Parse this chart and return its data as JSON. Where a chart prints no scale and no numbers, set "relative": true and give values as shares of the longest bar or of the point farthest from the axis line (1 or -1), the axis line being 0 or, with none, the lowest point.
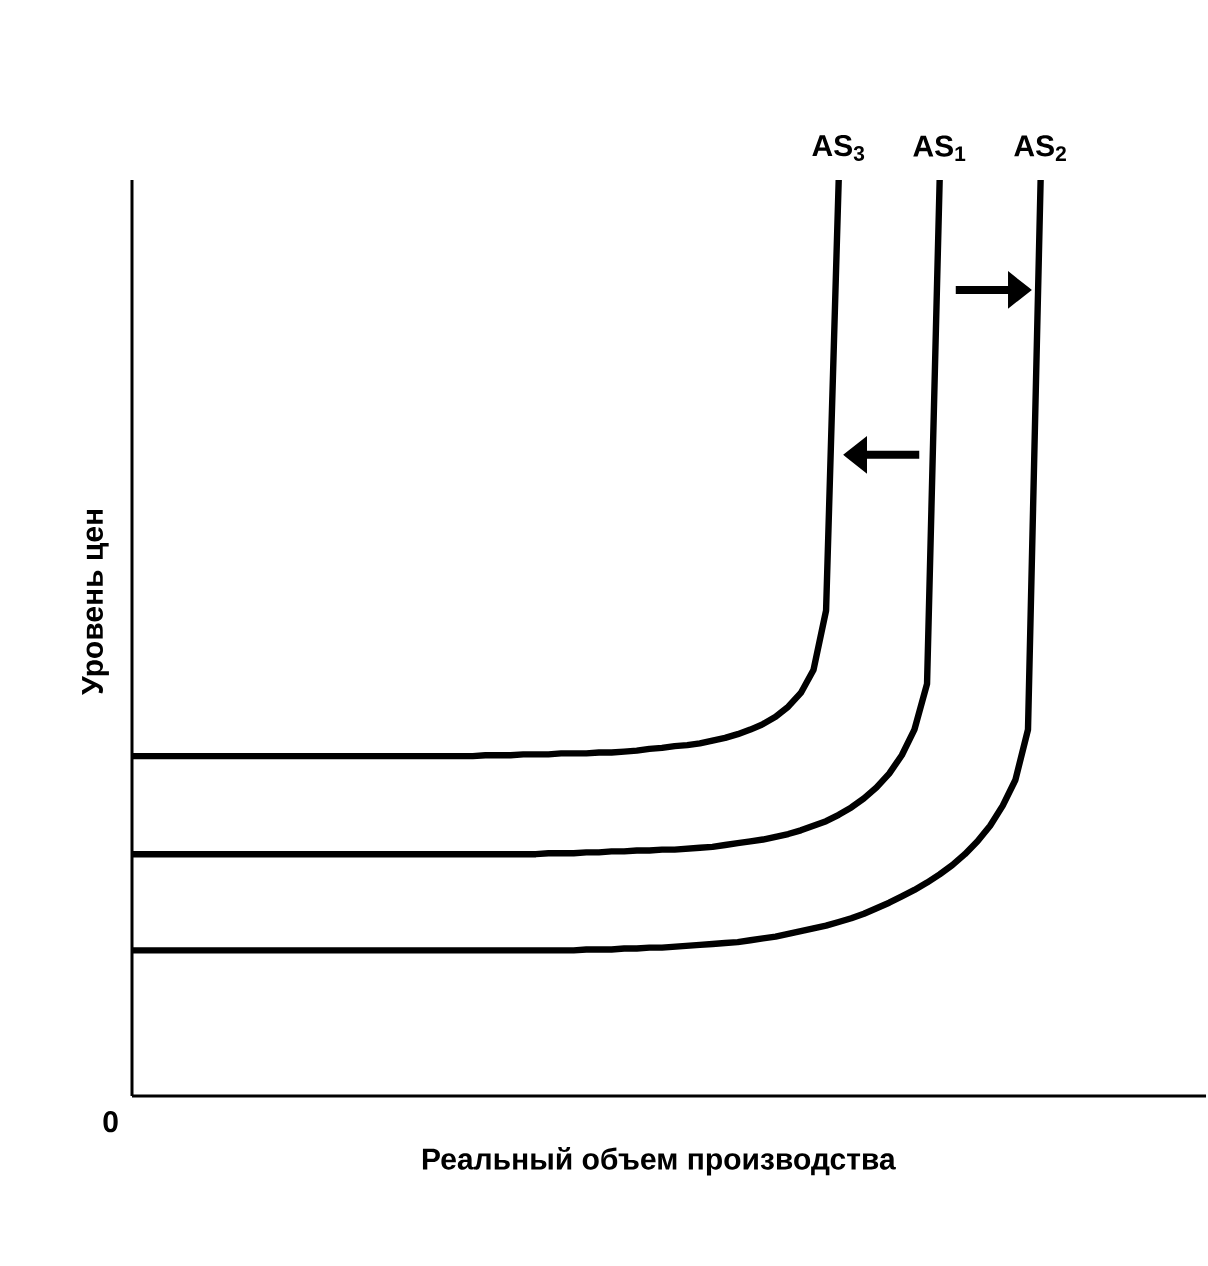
{
  "chart_data": {
    "type": "line",
    "relative": true,
    "xlabel": "Реальный объем производства",
    "ylabel": "Уровень цен",
    "annotations": [
      "0"
    ],
    "legend": false,
    "line_style": "solid",
    "marker": "none",
    "categories": [
      null,
      null,
      null,
      null,
      null,
      null,
      null,
      null,
      null,
      null,
      null,
      null,
      null,
      null,
      null,
      null,
      null,
      null,
      null,
      null,
      null,
      null,
      null,
      null,
      null,
      null,
      null,
      null,
      null,
      null,
      null,
      null,
      null,
      null,
      null,
      null,
      null,
      null,
      null,
      null,
      null,
      null,
      null,
      null,
      null,
      null,
      null,
      null,
      null,
      null,
      null,
      null,
      null,
      null,
      null,
      null,
      null,
      null,
      null,
      null,
      null,
      null,
      null,
      null,
      null,
      null,
      null,
      null,
      null,
      null,
      null,
      null,
      null
    ],
    "series": [
      {
        "name": "AS$_{3}$",
        "color": "#000000",
        "values": [
          0.371,
          0.371,
          0.371,
          0.371,
          0.371,
          0.371,
          0.371,
          0.371,
          0.371,
          0.371,
          0.371,
          0.371,
          0.371,
          0.371,
          0.371,
          0.371,
          0.371,
          0.371,
          0.371,
          0.371,
          0.371,
          0.371,
          0.371,
          0.371,
          0.371,
          0.371,
          0.371,
          0.371,
          0.372,
          0.372,
          0.372,
          0.373,
          0.373,
          0.373,
          0.374,
          0.374,
          0.374,
          0.375,
          0.375,
          0.376,
          0.377,
          0.379,
          0.38,
          0.382,
          0.383,
          0.385,
          0.388,
          0.391,
          0.395,
          0.4,
          0.406,
          0.414,
          0.425,
          0.44,
          0.465,
          0.53,
          1,
          null,
          null,
          null,
          null,
          null,
          null,
          null,
          null,
          null,
          null,
          null,
          null,
          null,
          null,
          null,
          null
        ]
      },
      {
        "name": "AS$_{1}$",
        "color": "#000000",
        "values": [
          0.264,
          0.264,
          0.264,
          0.264,
          0.264,
          0.264,
          0.264,
          0.264,
          0.264,
          0.264,
          0.264,
          0.264,
          0.264,
          0.264,
          0.264,
          0.264,
          0.264,
          0.264,
          0.264,
          0.264,
          0.264,
          0.264,
          0.264,
          0.264,
          0.264,
          0.264,
          0.264,
          0.264,
          0.264,
          0.264,
          0.264,
          0.264,
          0.264,
          0.265,
          0.265,
          0.265,
          0.266,
          0.266,
          0.267,
          0.267,
          0.268,
          0.268,
          0.269,
          0.269,
          0.27,
          0.271,
          0.272,
          0.274,
          0.276,
          0.278,
          0.28,
          0.283,
          0.286,
          0.29,
          0.295,
          0.3,
          0.307,
          0.315,
          0.325,
          0.337,
          0.352,
          0.372,
          0.4,
          0.45,
          1,
          null,
          null,
          null,
          null,
          null,
          null,
          null,
          null
        ]
      },
      {
        "name": "AS$_{2}$",
        "color": "#000000",
        "values": [
          0.159,
          0.159,
          0.159,
          0.159,
          0.159,
          0.159,
          0.159,
          0.159,
          0.159,
          0.159,
          0.159,
          0.159,
          0.159,
          0.159,
          0.159,
          0.159,
          0.159,
          0.159,
          0.159,
          0.159,
          0.159,
          0.159,
          0.159,
          0.159,
          0.159,
          0.159,
          0.159,
          0.159,
          0.159,
          0.159,
          0.159,
          0.159,
          0.159,
          0.159,
          0.159,
          0.159,
          0.16,
          0.16,
          0.16,
          0.161,
          0.161,
          0.162,
          0.162,
          0.163,
          0.164,
          0.165,
          0.166,
          0.167,
          0.168,
          0.17,
          0.172,
          0.174,
          0.177,
          0.18,
          0.183,
          0.186,
          0.19,
          0.194,
          0.199,
          0.205,
          0.211,
          0.218,
          0.225,
          0.233,
          0.242,
          0.252,
          0.264,
          0.278,
          0.295,
          0.317,
          0.345,
          0.4,
          1
        ]
      }
    ]
  }
}
